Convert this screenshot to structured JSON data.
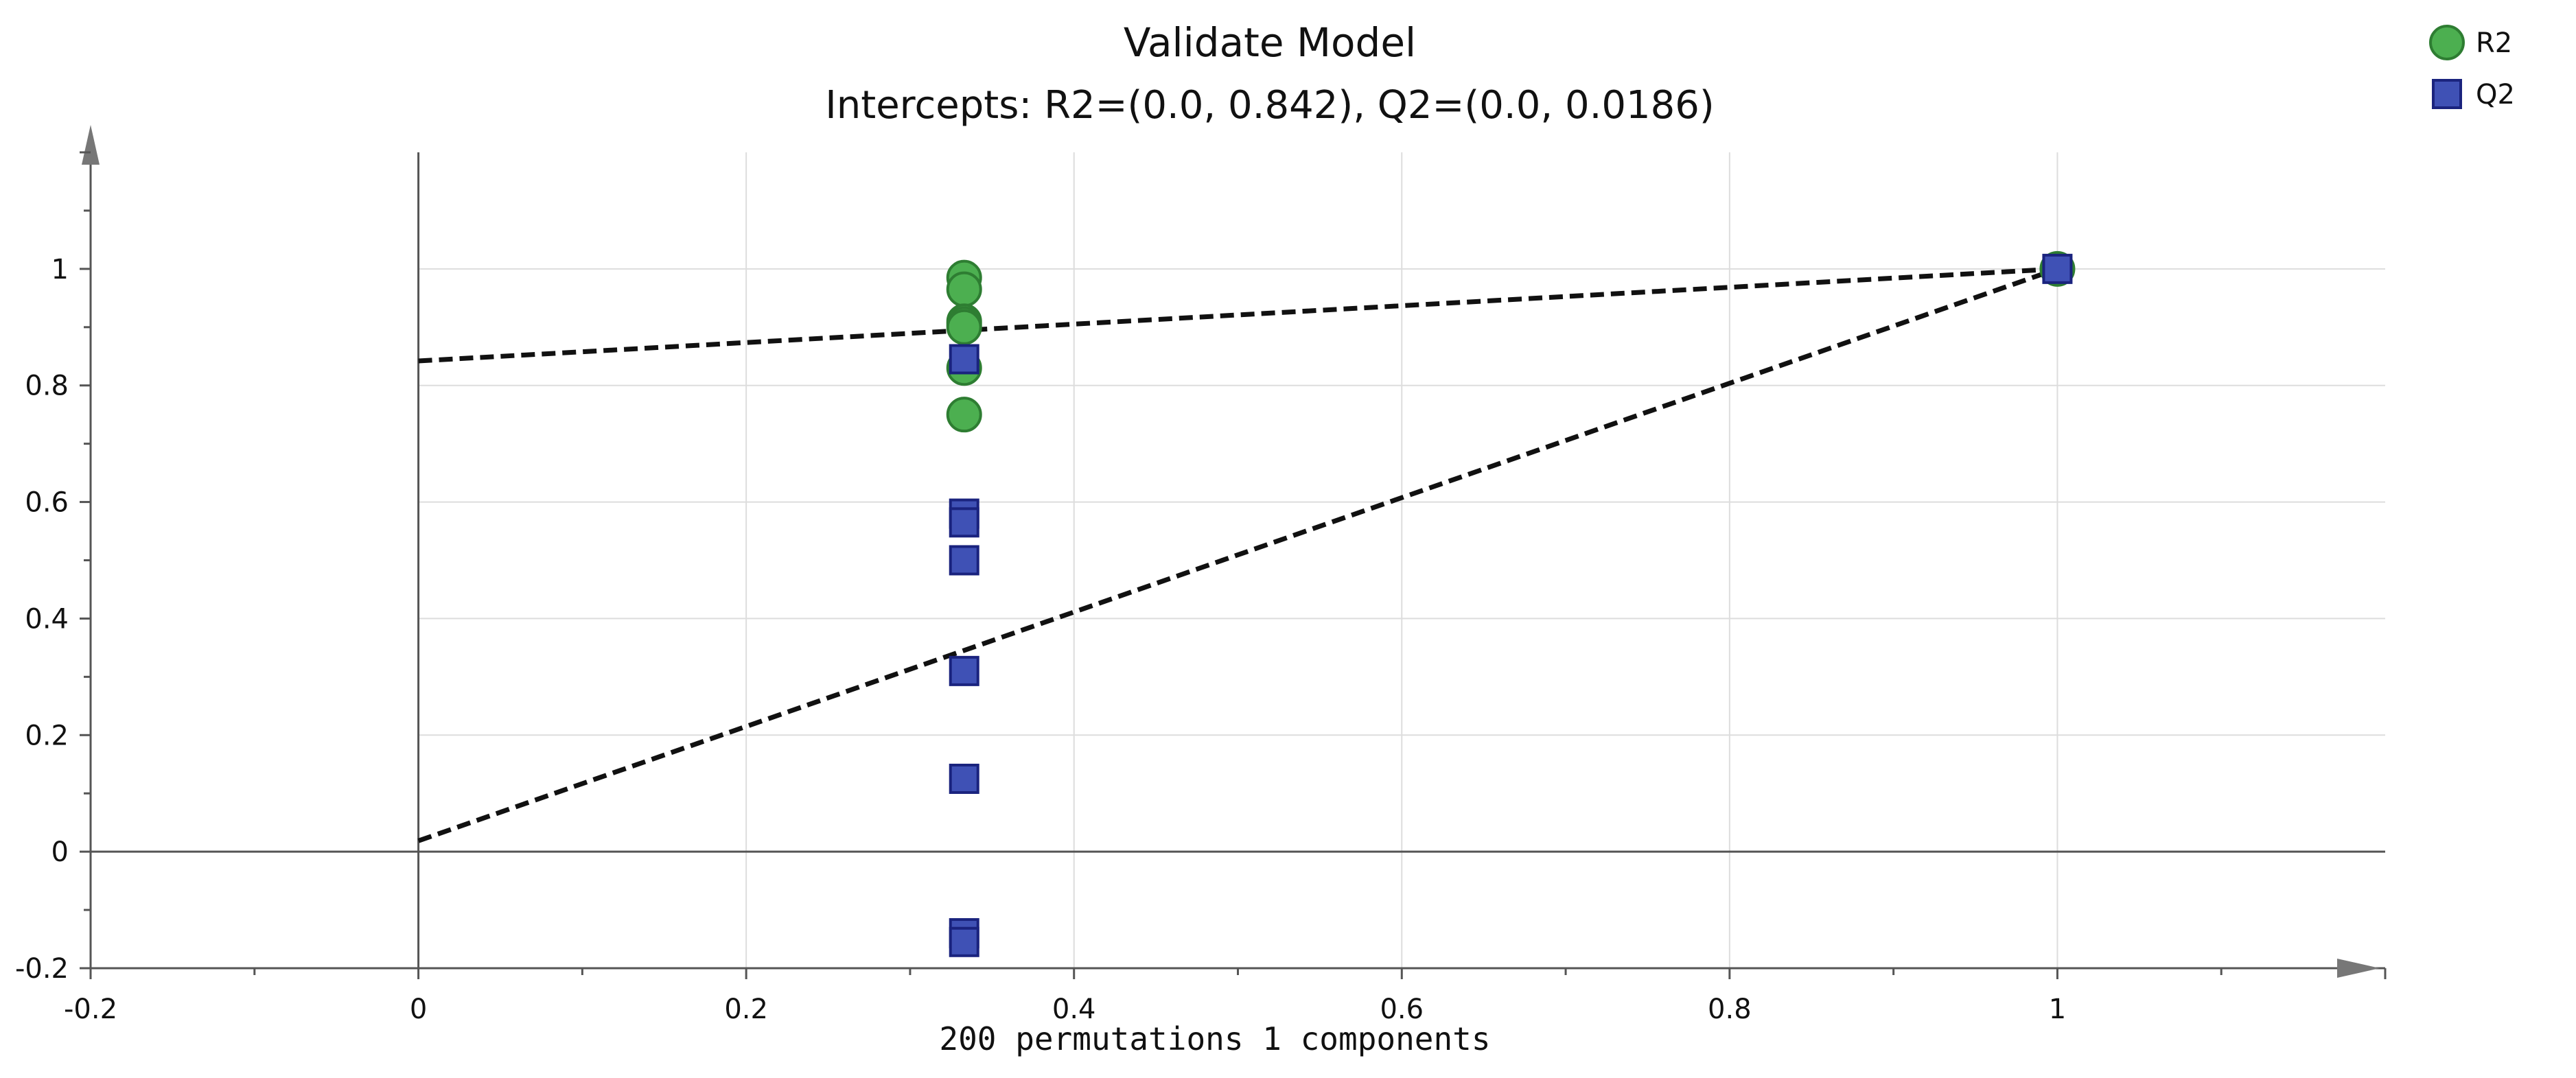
{
  "chart_data": {
    "type": "scatter",
    "title": "Validate Model",
    "subtitle": "Intercepts: R2=(0.0, 0.842), Q2=(0.0, 0.0186)",
    "xlabel": "200 permutations 1 components",
    "ylabel": "",
    "xlim": [
      -0.2,
      1.2
    ],
    "ylim": [
      -0.2,
      1.2
    ],
    "x_ticks": [
      -0.2,
      0,
      0.2,
      0.4,
      0.6,
      0.8,
      1
    ],
    "x_tick_labels": [
      "-0.2",
      "0",
      "0.2",
      "0.4",
      "0.6",
      "0.8",
      "1"
    ],
    "y_ticks": [
      -0.2,
      0,
      0.2,
      0.4,
      0.6,
      0.8,
      1
    ],
    "y_tick_labels": [
      "-0.2",
      "0",
      "0.2",
      "0.4",
      "0.6",
      "0.8",
      "1"
    ],
    "grid": true,
    "legend_position": "top-right",
    "series": [
      {
        "name": "R2",
        "marker": "circle",
        "color": "#4CAF50",
        "edge_color": "#2E7D32",
        "points": [
          [
            0.333,
            0.985
          ],
          [
            0.333,
            0.965
          ],
          [
            0.333,
            0.91
          ],
          [
            0.333,
            0.905
          ],
          [
            0.333,
            0.9
          ],
          [
            0.333,
            0.83
          ],
          [
            0.333,
            0.75
          ],
          [
            1.0,
            1.0
          ]
        ]
      },
      {
        "name": "Q2",
        "marker": "square",
        "color": "#3F51B5",
        "edge_color": "#1A237E",
        "points": [
          [
            0.333,
            0.845
          ],
          [
            0.333,
            0.58
          ],
          [
            0.333,
            0.565
          ],
          [
            0.333,
            0.5
          ],
          [
            0.333,
            0.31
          ],
          [
            0.333,
            0.125
          ],
          [
            0.333,
            -0.14
          ],
          [
            0.333,
            -0.155
          ],
          [
            1.0,
            1.0
          ]
        ]
      }
    ],
    "regression_lines": [
      {
        "name": "R2 intercept line",
        "from": [
          0.0,
          0.842
        ],
        "to": [
          1.0,
          1.0
        ]
      },
      {
        "name": "Q2 intercept line",
        "from": [
          0.0,
          0.0186
        ],
        "to": [
          1.0,
          1.0
        ]
      }
    ]
  },
  "colors": {
    "grid": "#dddddd",
    "axis": "#555555",
    "zero_line": "#555555",
    "dashed_line": "#111111"
  }
}
